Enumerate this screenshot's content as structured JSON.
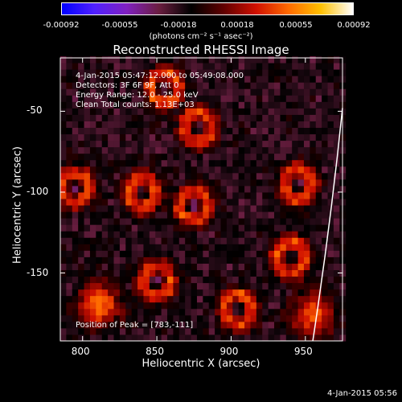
{
  "colorbar": {
    "ticks": [
      "-0.00092",
      "-0.00055",
      "-0.00018",
      "0.00018",
      "0.00055",
      "0.00092"
    ],
    "units": "(photons cm⁻² s⁻¹ asec⁻²)",
    "colormap": [
      "#0000ff",
      "#5020ff",
      "#8020c0",
      "#6a1e40",
      "#000000",
      "#600000",
      "#d01000",
      "#ff6a00",
      "#ffc000",
      "#ffffff"
    ]
  },
  "info": {
    "line1": "4-Jan-2015 05:47:12.000 to 05:49:08.000",
    "line2": "Detectors: 3F 6F 9F, Att 0",
    "line3": "Energy Range: 12.0 - 25.0 keV",
    "line4": "Clean     Total counts: 1.13E+03",
    "peak": "Position of Peak = [783,-111]"
  },
  "footer_stamp": "4-Jan-2015 05:56",
  "chart_data": {
    "type": "heatmap",
    "title": "Reconstructed RHESSI Image",
    "xlabel": "Heliocentric X (arcsec)",
    "ylabel": "Heliocentric Y (arcsec)",
    "xlim": [
      785,
      975
    ],
    "ylim": [
      -192,
      -17
    ],
    "xticks": [
      800,
      850,
      900,
      950
    ],
    "yticks": [
      -50,
      -100,
      -150
    ],
    "zlim": [
      -0.00092,
      0.00092
    ],
    "peak": [
      783,
      -111
    ],
    "grid": false,
    "pixel_size_arcsec": 4,
    "bright_regions": [
      {
        "x": 795,
        "y": -97,
        "type": "ring"
      },
      {
        "x": 812,
        "y": -170,
        "type": "blob"
      },
      {
        "x": 855,
        "y": -35,
        "type": "ring"
      },
      {
        "x": 878,
        "y": -60,
        "type": "ring"
      },
      {
        "x": 840,
        "y": -100,
        "type": "ring"
      },
      {
        "x": 875,
        "y": -108,
        "type": "ring"
      },
      {
        "x": 850,
        "y": -155,
        "type": "ring"
      },
      {
        "x": 905,
        "y": -172,
        "type": "ring"
      },
      {
        "x": 945,
        "y": -95,
        "type": "ring"
      },
      {
        "x": 940,
        "y": -140,
        "type": "ring"
      },
      {
        "x": 955,
        "y": -175,
        "type": "blob"
      }
    ]
  }
}
